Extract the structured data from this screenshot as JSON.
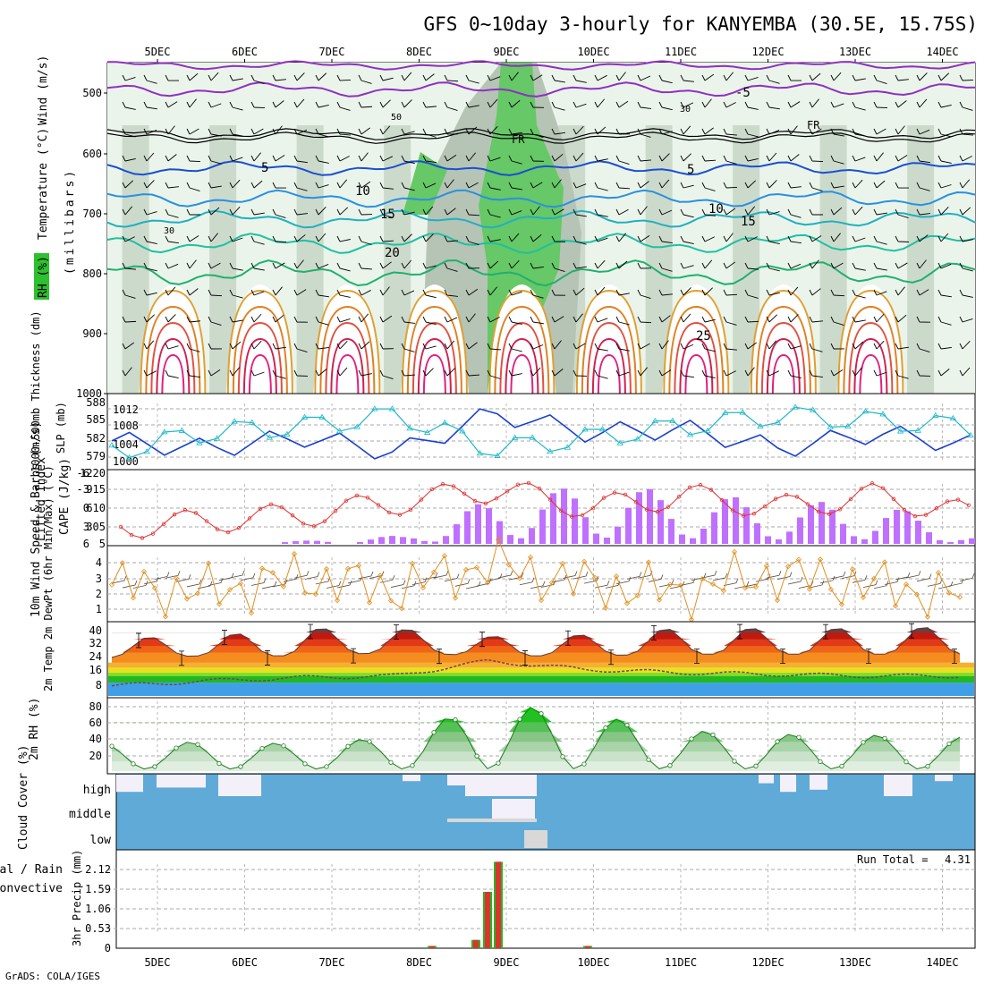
{
  "title": "GFS 0~10day 3-hourly for KANYEMBA (30.5E, 15.75S)",
  "footer": "GrADS: COLA/IGES",
  "dates": [
    "5DEC",
    "6DEC",
    "7DEC",
    "8DEC",
    "9DEC",
    "10DEC",
    "11DEC",
    "12DEC",
    "13DEC",
    "14DEC"
  ],
  "colors": {
    "rh": "#2ec02e",
    "temperature": "#e06030",
    "wind": "#000000",
    "slp": "#1a3fd0",
    "thickness": "#20b8c8",
    "li": "#e03030",
    "cape": "#c070ff",
    "wind10": "#e09020",
    "rh2m": "#18a018",
    "cloud": "#60aad8",
    "rain": "#e03030",
    "total": "#22b822"
  },
  "panels": {
    "upper_air": {
      "yaxis_label": "(millibars)",
      "legend": {
        "rh": "RH (%)",
        "temperature": "Temperature (°C)",
        "wind": "Wind (m/s)"
      },
      "pressure_ticks": [
        "500",
        "600",
        "700",
        "800",
        "900",
        "1000"
      ],
      "contour_labels": [
        "-5",
        "FR",
        "FR",
        "5",
        "5",
        "10",
        "10",
        "15",
        "15",
        "20",
        "25",
        "50",
        "30",
        "30"
      ]
    },
    "slp_thickness": {
      "label_thickness": "1000-500mb Thickness (dm)",
      "label_slp": "SLP (mb)",
      "thickness_ticks": [
        "588",
        "585",
        "582",
        "579"
      ],
      "slp_ticks": [
        "1012",
        "1008",
        "1004",
        "1000"
      ]
    },
    "li_cape": {
      "label_li": "Lifted Index",
      "label_cape": "CAPE (J/kg)",
      "li_ticks": [
        "-6",
        "-3",
        "0",
        "3",
        "6"
      ],
      "cape_ticks": [
        "1220",
        "915",
        "610",
        "305",
        "5"
      ]
    },
    "wind10": {
      "label": "10m Wind Speed & Barbs (m/s)",
      "ticks": [
        "4",
        "3",
        "2",
        "1"
      ]
    },
    "temp2m": {
      "label": "2m Temp 2m DewPt (6hr Min/Max) (°C)",
      "ticks": [
        "40",
        "32",
        "24",
        "16",
        "8"
      ]
    },
    "rh2m": {
      "label": "2m RH (%)",
      "ticks": [
        "80",
        "60",
        "40",
        "20"
      ]
    },
    "cloud": {
      "label": "Cloud Cover (%)",
      "levels": [
        "high",
        "middle",
        "low"
      ]
    },
    "precip": {
      "label_total": "Total / Rain",
      "label_conv": "Convective",
      "ylabel": "3hr Precip (mm)",
      "ticks": [
        "2.12",
        "1.59",
        "1.06",
        "0.53",
        "0"
      ],
      "run_total_label": "Run Total =",
      "run_total_value": "4.31"
    }
  },
  "chart_data": [
    {
      "type": "line",
      "title": "SLP (mb) and 1000-500mb Thickness (dm)",
      "x": [
        "5DEC",
        "6DEC",
        "7DEC",
        "8DEC",
        "9DEC",
        "10DEC",
        "11DEC",
        "12DEC",
        "13DEC",
        "14DEC"
      ],
      "series": [
        {
          "name": "SLP (mb)",
          "values": [
            1005,
            1003,
            1006,
            1002,
            1012,
            1007,
            1008,
            1003,
            1007,
            1004
          ]
        },
        {
          "name": "1000-500mb Thickness (dm)",
          "values": [
            579.5,
            583,
            584,
            586,
            580,
            582,
            584,
            586,
            585,
            584
          ]
        }
      ],
      "ylim_slp": [
        1000,
        1014
      ],
      "ylim_thickness": [
        578,
        589
      ]
    },
    {
      "type": "bar",
      "title": "CAPE (J/kg) & Lifted Index",
      "x": [
        "5DEC",
        "6DEC",
        "7DEC",
        "8DEC",
        "9DEC",
        "10DEC",
        "11DEC",
        "12DEC",
        "13DEC",
        "14DEC"
      ],
      "series": [
        {
          "name": "CAPE (J/kg)",
          "values": [
            20,
            10,
            60,
            150,
            850,
            1000,
            900,
            700,
            750,
            150
          ]
        },
        {
          "name": "Lifted Index",
          "values": [
            3,
            2,
            1,
            -1,
            -3,
            0,
            -2,
            0,
            -2,
            1
          ]
        }
      ],
      "ylim_cape": [
        5,
        1220
      ]
    },
    {
      "type": "line",
      "title": "10m Wind Speed (m/s)",
      "x": [
        "5DEC",
        "6DEC",
        "7DEC",
        "8DEC",
        "9DEC",
        "10DEC",
        "11DEC",
        "12DEC",
        "13DEC",
        "14DEC"
      ],
      "series": [
        {
          "name": "10m Wind Speed (m/s)",
          "values": [
            2.5,
            2.0,
            3.0,
            2.2,
            3.8,
            2.6,
            2.0,
            3.2,
            2.5,
            1.8
          ]
        }
      ],
      "ylim": [
        0,
        4.8
      ]
    },
    {
      "type": "area",
      "title": "2m Temp and 2m DewPt (°C)",
      "x": [
        "5DEC",
        "6DEC",
        "7DEC",
        "8DEC",
        "9DEC",
        "10DEC",
        "11DEC",
        "12DEC",
        "13DEC",
        "14DEC"
      ],
      "series": [
        {
          "name": "2m Temp min",
          "values": [
            23,
            24,
            24,
            26,
            24,
            24,
            25,
            25,
            25,
            25
          ]
        },
        {
          "name": "2m Temp max",
          "values": [
            35,
            36,
            41,
            41,
            36,
            37,
            41,
            41,
            41,
            42
          ]
        },
        {
          "name": "2m DewPt",
          "values": [
            6,
            9,
            11,
            12,
            21,
            16,
            14,
            13,
            12,
            12
          ]
        }
      ],
      "ylim": [
        0,
        44
      ]
    },
    {
      "type": "area",
      "title": "2m RH (%)",
      "x": [
        "5DEC",
        "6DEC",
        "7DEC",
        "8DEC",
        "9DEC",
        "10DEC",
        "11DEC",
        "12DEC",
        "13DEC",
        "14DEC"
      ],
      "series": [
        {
          "name": "2m RH max (%)",
          "values": [
            38,
            40,
            38,
            45,
            80,
            70,
            52,
            48,
            47,
            45
          ]
        }
      ],
      "ylim": [
        10,
        85
      ]
    },
    {
      "type": "bar",
      "title": "3hr Precip (mm)",
      "x": [
        "8DEC 00Z",
        "8DEC 18Z",
        "8DEC 21Z",
        "9DEC 00Z",
        "9DEC 03Z",
        "9DEC 06Z",
        "10DEC 12Z"
      ],
      "series": [
        {
          "name": "Total",
          "values": [
            0.06,
            0.22,
            1.5,
            2.3,
            0.0,
            0.0,
            0.06
          ]
        },
        {
          "name": "Convective",
          "values": [
            0.06,
            0.22,
            1.5,
            2.3,
            0.0,
            0.0,
            0.06
          ]
        }
      ],
      "run_total": 4.31,
      "ylim": [
        0,
        2.5
      ]
    }
  ]
}
